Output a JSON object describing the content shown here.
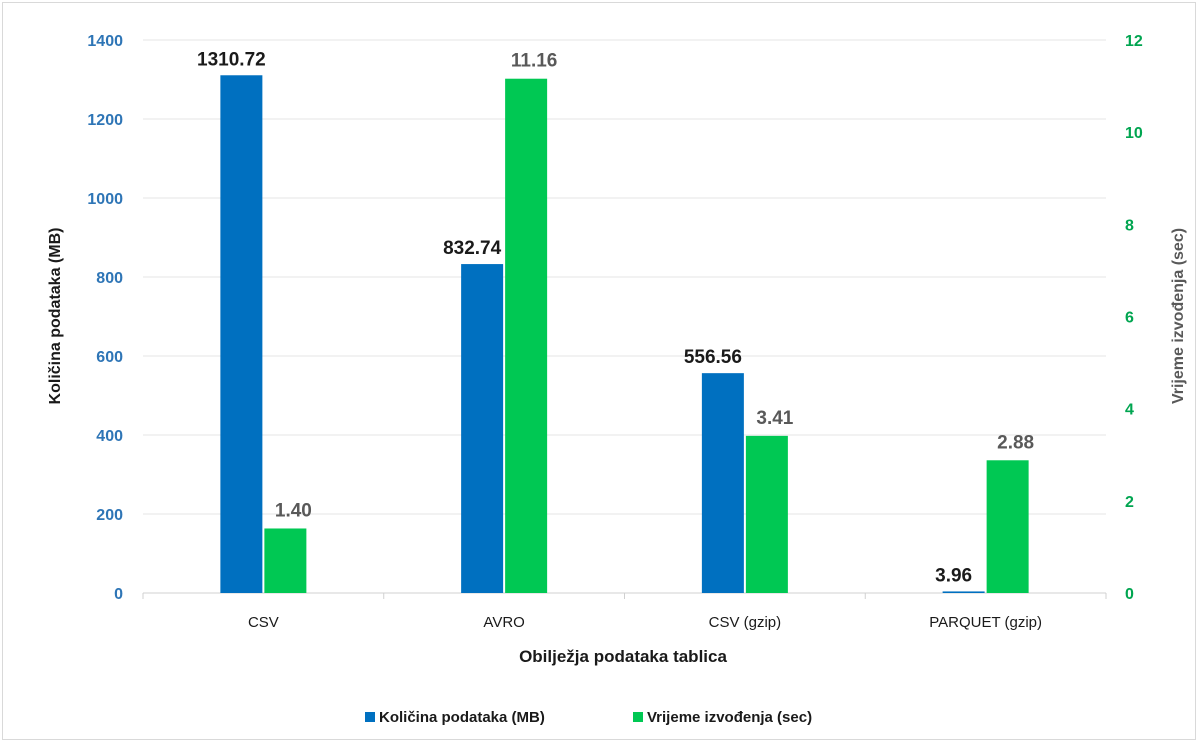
{
  "chart_data": {
    "type": "bar",
    "title": "",
    "xlabel": "Obilježja podataka tablica",
    "ylabel": "Količina podataka (MB)",
    "y2label": "Vrijeme izvođenja (sec)",
    "categories": [
      "CSV",
      "AVRO",
      "CSV (gzip)",
      "PARQUET (gzip)"
    ],
    "ylim": [
      0,
      1400
    ],
    "y2lim": [
      0,
      12
    ],
    "yticks": [
      0,
      200,
      400,
      600,
      800,
      1000,
      1200,
      1400
    ],
    "y2ticks": [
      0,
      2,
      4,
      6,
      8,
      10,
      12
    ],
    "grid": true,
    "legend_position": "bottom",
    "series": [
      {
        "name": "Količina podataka (MB)",
        "axis": "left",
        "color": "#0070c0",
        "values": [
          1310.72,
          832.74,
          556.56,
          3.96
        ],
        "labels": [
          "1310.72",
          "832.74",
          "556.56",
          "3.96"
        ]
      },
      {
        "name": "Vrijeme izvođenja (sec)",
        "axis": "right",
        "color": "#00c853",
        "values": [
          1.4,
          11.16,
          3.41,
          2.88
        ],
        "labels": [
          "1.40",
          "11.16",
          "3.41",
          "2.88"
        ]
      }
    ],
    "colors": {
      "left_axis_text": "#2e75b6",
      "right_axis_text": "#00a550",
      "label_left_series": "#1a1a1a",
      "label_right_series": "#595959",
      "axis_title": "#1a1a1a",
      "gridline": "#e6e6e6"
    }
  }
}
